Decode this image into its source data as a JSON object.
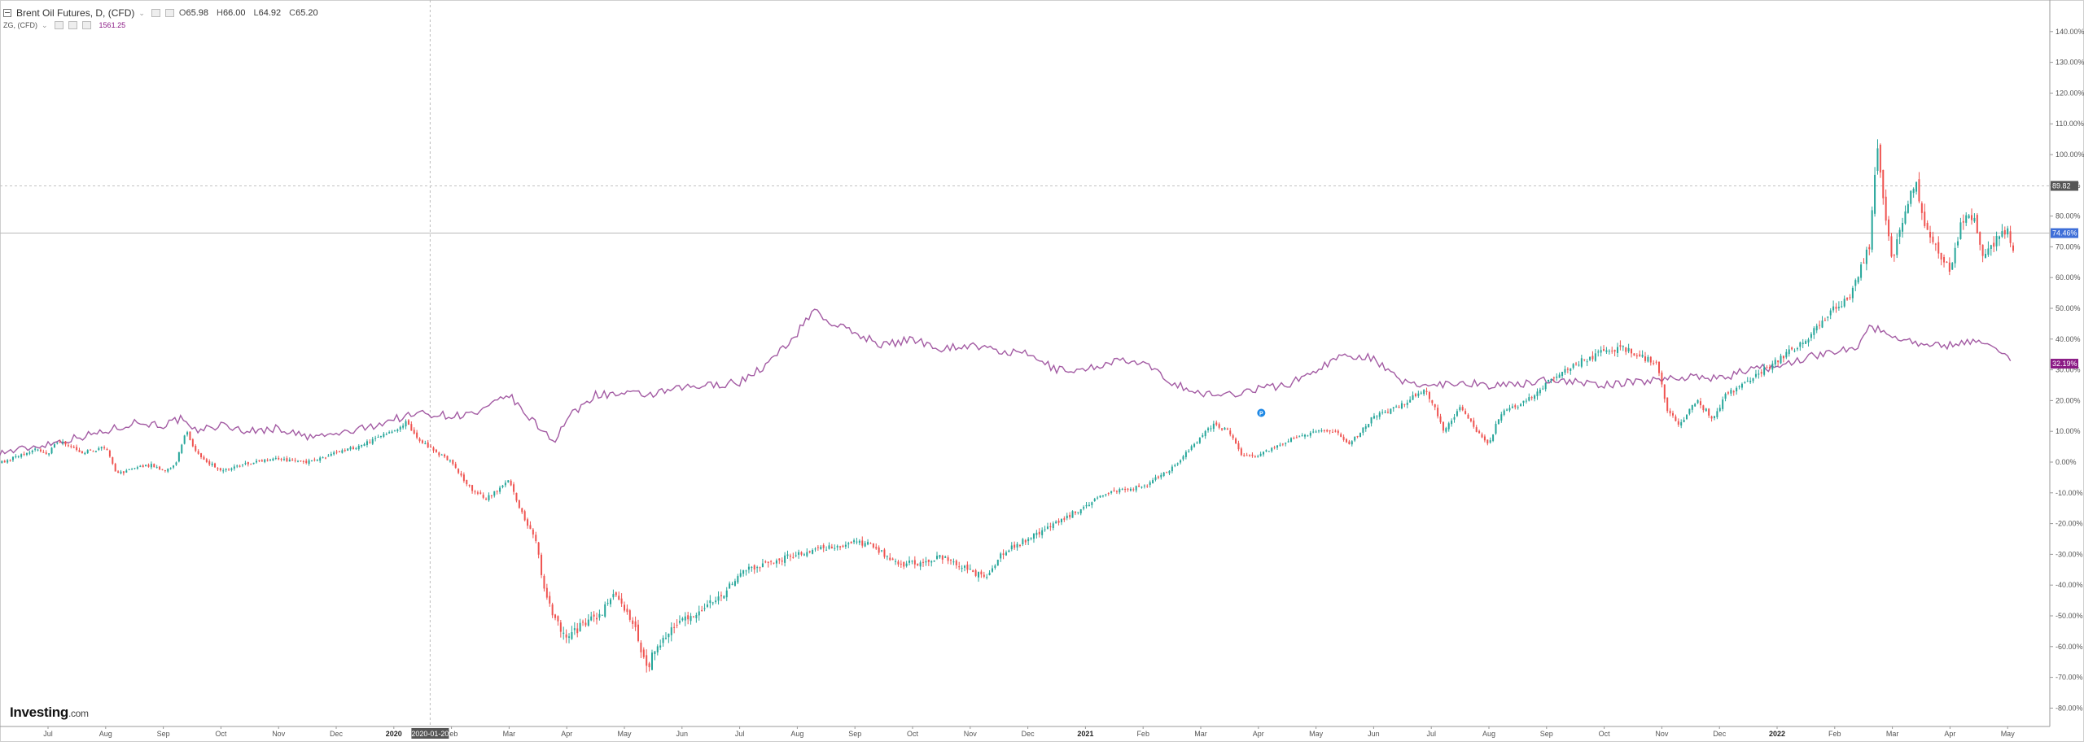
{
  "legend": {
    "symbol": "Brent Oil Futures, D, (CFD)",
    "open_label": "O",
    "open": "65.98",
    "high_label": "H",
    "high": "66.00",
    "low_label": "L",
    "low": "64.92",
    "close_label": "C",
    "close": "65.20",
    "compare_symbol": "ZG, (CFD)",
    "compare_value": "1561.25"
  },
  "logo": {
    "text": "Investing",
    "suffix": ".com"
  },
  "colors": {
    "up": "#26a69a",
    "down": "#ef5350",
    "compare_line": "#a35ba3",
    "axis_text": "#555555",
    "grid_border": "#cfcfcf",
    "compare_badge": "#8b1a85",
    "price_badge": "#3f6fd8",
    "cursor_badge": "#555555"
  },
  "chart_data": {
    "type": "candlestick",
    "title": "",
    "y_axis": {
      "unit": "%",
      "ylim": [
        -85,
        150
      ],
      "ticks": [
        "140.00%",
        "130.00%",
        "120.00%",
        "110.00%",
        "100.00%",
        "90.00%",
        "80.00%",
        "70.00%",
        "60.00%",
        "50.00%",
        "40.00%",
        "30.00%",
        "20.00%",
        "10.00%",
        "0.00%",
        "-10.00%",
        "-20.00%",
        "-30.00%",
        "-40.00%",
        "-50.00%",
        "-60.00%",
        "-70.00%",
        "-80.00%"
      ],
      "tick_values": [
        140,
        130,
        120,
        110,
        100,
        90,
        80,
        70,
        60,
        50,
        40,
        30,
        20,
        10,
        0,
        -10,
        -20,
        -30,
        -40,
        -50,
        -60,
        -70,
        -80
      ]
    },
    "x_axis": {
      "labels": [
        "Jul",
        "Aug",
        "Sep",
        "Oct",
        "Nov",
        "Dec",
        "2020",
        "Feb",
        "Mar",
        "Apr",
        "May",
        "Jun",
        "Jul",
        "Aug",
        "Sep",
        "Oct",
        "Nov",
        "Dec",
        "2021",
        "Feb",
        "Mar",
        "Apr",
        "May",
        "Jun",
        "Jul",
        "Aug",
        "Sep",
        "Oct",
        "Nov",
        "Dec",
        "2022",
        "Feb",
        "Mar",
        "Apr",
        "May"
      ],
      "label_months": [
        1,
        2,
        3,
        4,
        5,
        6,
        7,
        8,
        9,
        10,
        11,
        12,
        13,
        14,
        15,
        16,
        17,
        18,
        19,
        20,
        21,
        22,
        23,
        24,
        25,
        26,
        27,
        28,
        29,
        30,
        31,
        32,
        33,
        34,
        35
      ],
      "range_months": [
        0.15,
        35.4
      ],
      "cursor_date": "2020-01-20",
      "cursor_month": 7.63
    },
    "series": [
      {
        "name": "Brent Oil Futures, D, (CFD)",
        "kind": "candles",
        "points": [
          [
            0.2,
            0
          ],
          [
            0.5,
            2
          ],
          [
            0.8,
            4
          ],
          [
            1.0,
            3
          ],
          [
            1.2,
            7
          ],
          [
            1.6,
            3
          ],
          [
            2.0,
            5
          ],
          [
            2.2,
            -4
          ],
          [
            2.5,
            -2
          ],
          [
            2.8,
            -1
          ],
          [
            3.0,
            -3
          ],
          [
            3.2,
            -1
          ],
          [
            3.4,
            10
          ],
          [
            3.5,
            5
          ],
          [
            3.7,
            1
          ],
          [
            4.0,
            -3
          ],
          [
            4.3,
            -1
          ],
          [
            4.6,
            0
          ],
          [
            5.0,
            1
          ],
          [
            5.5,
            0
          ],
          [
            6.0,
            3
          ],
          [
            6.5,
            6
          ],
          [
            7.0,
            10
          ],
          [
            7.2,
            13
          ],
          [
            7.4,
            8
          ],
          [
            7.6,
            5
          ],
          [
            8.0,
            0
          ],
          [
            8.3,
            -8
          ],
          [
            8.6,
            -12
          ],
          [
            9.0,
            -6
          ],
          [
            9.3,
            -20
          ],
          [
            9.5,
            -27
          ],
          [
            9.55,
            -37
          ],
          [
            9.7,
            -47
          ],
          [
            10.0,
            -58
          ],
          [
            10.3,
            -52
          ],
          [
            10.6,
            -50
          ],
          [
            10.8,
            -42
          ],
          [
            11.0,
            -48
          ],
          [
            11.2,
            -55
          ],
          [
            11.4,
            -68
          ],
          [
            11.5,
            -62
          ],
          [
            11.8,
            -55
          ],
          [
            12.0,
            -52
          ],
          [
            12.3,
            -48
          ],
          [
            12.7,
            -43
          ],
          [
            13.0,
            -36
          ],
          [
            13.5,
            -33
          ],
          [
            14.0,
            -30
          ],
          [
            14.5,
            -28
          ],
          [
            15.0,
            -26
          ],
          [
            15.3,
            -27
          ],
          [
            15.7,
            -33
          ],
          [
            16.0,
            -33
          ],
          [
            16.5,
            -31
          ],
          [
            17.0,
            -35
          ],
          [
            17.3,
            -38
          ],
          [
            17.5,
            -30
          ],
          [
            18.0,
            -25
          ],
          [
            18.5,
            -20
          ],
          [
            19.0,
            -14
          ],
          [
            19.5,
            -9
          ],
          [
            20.0,
            -8
          ],
          [
            20.5,
            -2
          ],
          [
            21.0,
            8
          ],
          [
            21.2,
            12
          ],
          [
            21.5,
            10
          ],
          [
            21.7,
            2
          ],
          [
            22.0,
            2
          ],
          [
            22.5,
            7
          ],
          [
            23.0,
            10
          ],
          [
            23.3,
            10
          ],
          [
            23.6,
            6
          ],
          [
            24.0,
            15
          ],
          [
            24.3,
            17
          ],
          [
            24.6,
            20
          ],
          [
            24.9,
            24
          ],
          [
            25.1,
            16
          ],
          [
            25.2,
            10
          ],
          [
            25.5,
            18
          ],
          [
            25.8,
            10
          ],
          [
            26.0,
            6
          ],
          [
            26.2,
            16
          ],
          [
            26.5,
            18
          ],
          [
            26.8,
            22
          ],
          [
            27.0,
            26
          ],
          [
            27.5,
            32
          ],
          [
            28.0,
            36
          ],
          [
            28.3,
            37
          ],
          [
            28.6,
            35
          ],
          [
            28.9,
            32
          ],
          [
            29.1,
            17
          ],
          [
            29.3,
            12
          ],
          [
            29.6,
            20
          ],
          [
            29.9,
            14
          ],
          [
            30.1,
            22
          ],
          [
            30.5,
            26
          ],
          [
            31.0,
            33
          ],
          [
            31.5,
            40
          ],
          [
            32.0,
            50
          ],
          [
            32.3,
            55
          ],
          [
            32.6,
            70
          ],
          [
            32.75,
            105
          ],
          [
            32.85,
            82
          ],
          [
            33.0,
            65
          ],
          [
            33.2,
            80
          ],
          [
            33.4,
            92
          ],
          [
            33.6,
            75
          ],
          [
            33.8,
            68
          ],
          [
            34.0,
            62
          ],
          [
            34.2,
            78
          ],
          [
            34.4,
            80
          ],
          [
            34.6,
            66
          ],
          [
            34.8,
            72
          ],
          [
            35.0,
            75
          ],
          [
            35.1,
            70
          ]
        ]
      },
      {
        "name": "ZG, (CFD)",
        "kind": "line",
        "points": [
          [
            0.15,
            3
          ],
          [
            0.5,
            4
          ],
          [
            1.0,
            6
          ],
          [
            1.5,
            8
          ],
          [
            2.0,
            10
          ],
          [
            2.5,
            13
          ],
          [
            3.0,
            12
          ],
          [
            3.3,
            14
          ],
          [
            3.5,
            10
          ],
          [
            4.0,
            12
          ],
          [
            4.5,
            10
          ],
          [
            5.0,
            11
          ],
          [
            5.5,
            8
          ],
          [
            6.0,
            9
          ],
          [
            6.5,
            11
          ],
          [
            7.0,
            14
          ],
          [
            7.5,
            16
          ],
          [
            8.0,
            15
          ],
          [
            8.5,
            16
          ],
          [
            9.0,
            22
          ],
          [
            9.2,
            17
          ],
          [
            9.6,
            10
          ],
          [
            9.8,
            7
          ],
          [
            10.0,
            14
          ],
          [
            10.5,
            22
          ],
          [
            11.0,
            22
          ],
          [
            11.5,
            22
          ],
          [
            12.0,
            24
          ],
          [
            12.5,
            25
          ],
          [
            13.0,
            26
          ],
          [
            13.5,
            32
          ],
          [
            14.0,
            42
          ],
          [
            14.3,
            50
          ],
          [
            14.5,
            46
          ],
          [
            15.0,
            42
          ],
          [
            15.5,
            38
          ],
          [
            16.0,
            40
          ],
          [
            16.5,
            37
          ],
          [
            17.0,
            38
          ],
          [
            17.5,
            36
          ],
          [
            18.0,
            35
          ],
          [
            18.5,
            30
          ],
          [
            19.0,
            30
          ],
          [
            19.5,
            33
          ],
          [
            20.0,
            32
          ],
          [
            20.5,
            26
          ],
          [
            21.0,
            22
          ],
          [
            21.5,
            22
          ],
          [
            22.0,
            24
          ],
          [
            22.5,
            25
          ],
          [
            23.0,
            30
          ],
          [
            23.5,
            35
          ],
          [
            24.0,
            34
          ],
          [
            24.2,
            30
          ],
          [
            24.5,
            26
          ],
          [
            25.0,
            25
          ],
          [
            25.5,
            26
          ],
          [
            26.0,
            25
          ],
          [
            26.5,
            25
          ],
          [
            27.0,
            27
          ],
          [
            27.5,
            26
          ],
          [
            28.0,
            25
          ],
          [
            28.5,
            26
          ],
          [
            29.0,
            27
          ],
          [
            29.5,
            28
          ],
          [
            30.0,
            27
          ],
          [
            30.5,
            30
          ],
          [
            31.0,
            31
          ],
          [
            31.5,
            34
          ],
          [
            32.0,
            36
          ],
          [
            32.4,
            38
          ],
          [
            32.6,
            44
          ],
          [
            32.9,
            42
          ],
          [
            33.2,
            40
          ],
          [
            33.6,
            38
          ],
          [
            34.0,
            38
          ],
          [
            34.5,
            40
          ],
          [
            35.0,
            34
          ],
          [
            35.1,
            32
          ]
        ]
      }
    ],
    "horizontal_lines": [
      {
        "value": 89.82,
        "label": "89.82",
        "style": "dashed"
      },
      {
        "value": 74.46,
        "label": "74.46%",
        "style": "solid"
      }
    ],
    "last_values": [
      {
        "series": "ZG, (CFD)",
        "label": "32.19%"
      }
    ],
    "markers": [
      {
        "x": 22.05,
        "y": 16,
        "label": "P"
      }
    ],
    "grid": false,
    "legend_position": "top-left"
  }
}
